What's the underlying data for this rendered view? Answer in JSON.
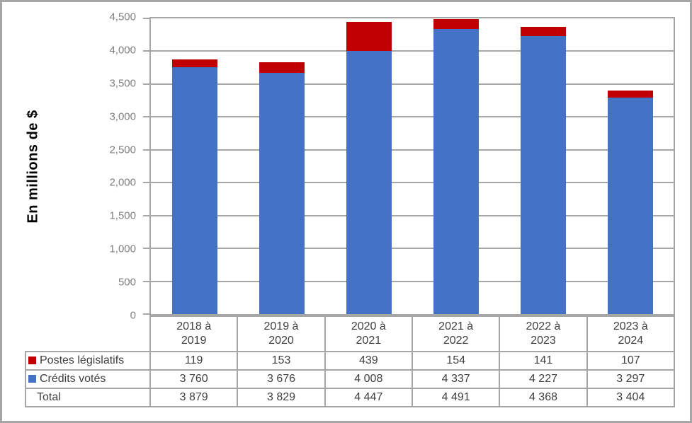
{
  "chart_data": {
    "type": "bar",
    "stacked": true,
    "title": "",
    "xlabel": "",
    "ylabel": "En millions de $",
    "ylim": [
      0,
      4500
    ],
    "ytick_interval": 500,
    "ytick_labels": [
      "0",
      "500",
      "1,000",
      "1,500",
      "2,000",
      "2,500",
      "3,000",
      "3,500",
      "4,000",
      "4,500"
    ],
    "grid": true,
    "legend_position": "data-table-left",
    "categories": [
      "2018 à 2019",
      "2019 à 2020",
      "2020 à 2021",
      "2021 à 2022",
      "2022 à 2023",
      "2023 à 2024"
    ],
    "series": [
      {
        "name": "Crédits votés",
        "color": "#4472C4",
        "values": [
          3760,
          3676,
          4008,
          4337,
          4227,
          3297
        ]
      },
      {
        "name": "Postes législatifs",
        "color": "#C00000",
        "values": [
          119,
          153,
          439,
          154,
          141,
          107
        ]
      }
    ],
    "totals": [
      3879,
      3829,
      4447,
      4491,
      4368,
      3404
    ]
  },
  "data_table": {
    "rows": [
      {
        "label": "Postes législatifs",
        "marker_color": "#C00000",
        "values": [
          "119",
          "153",
          "439",
          "154",
          "141",
          "107"
        ]
      },
      {
        "label": "Crédits votés",
        "marker_color": "#4472C4",
        "values": [
          "3 760",
          "3 676",
          "4 008",
          "4 337",
          "4 227",
          "3 297"
        ]
      },
      {
        "label": "Total",
        "marker_color": "",
        "values": [
          "3 879",
          "3 829",
          "4 447",
          "4 491",
          "4 368",
          "3 404"
        ]
      }
    ]
  },
  "colors": {
    "background": "#FFFFFF",
    "frame_border": "#A6A6A6",
    "gridline": "#A6A6A6",
    "axis_text": "#7F7F7F",
    "table_text": "#404040",
    "ytitle_text": "#000000"
  }
}
